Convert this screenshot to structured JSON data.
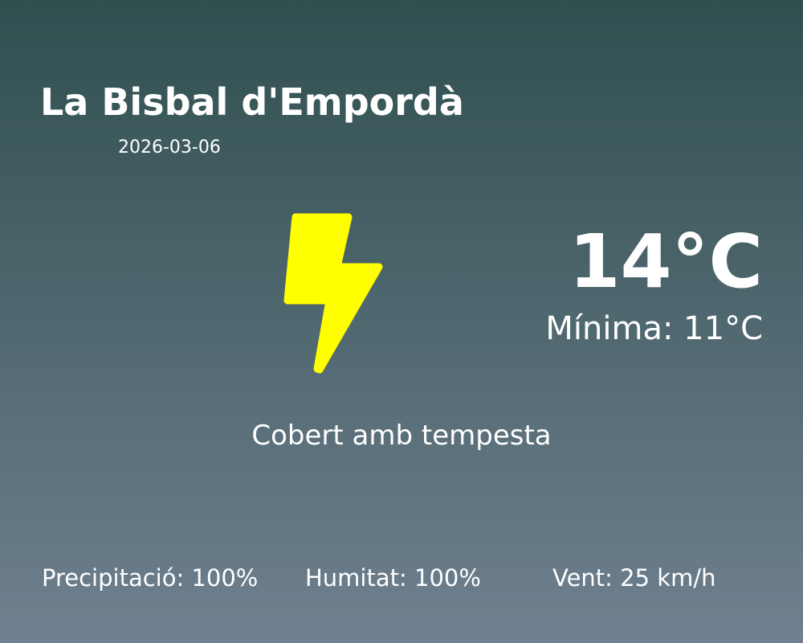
{
  "location": {
    "city": "La Bisbal d'Empordà",
    "date": "2026-03-06"
  },
  "weather": {
    "icon": "lightning-bolt-icon",
    "icon_color": "#ffff00",
    "temperature": "14°C",
    "minimum": "Mínima: 11°C",
    "condition": "Cobert amb tempesta"
  },
  "stats": {
    "precipitation": "Precipitació: 100%",
    "humidity": "Humitat: 100%",
    "wind": "Vent: 25 km/h"
  },
  "colors": {
    "gradient_top": "#2f4f4f",
    "gradient_bottom": "#708090"
  }
}
